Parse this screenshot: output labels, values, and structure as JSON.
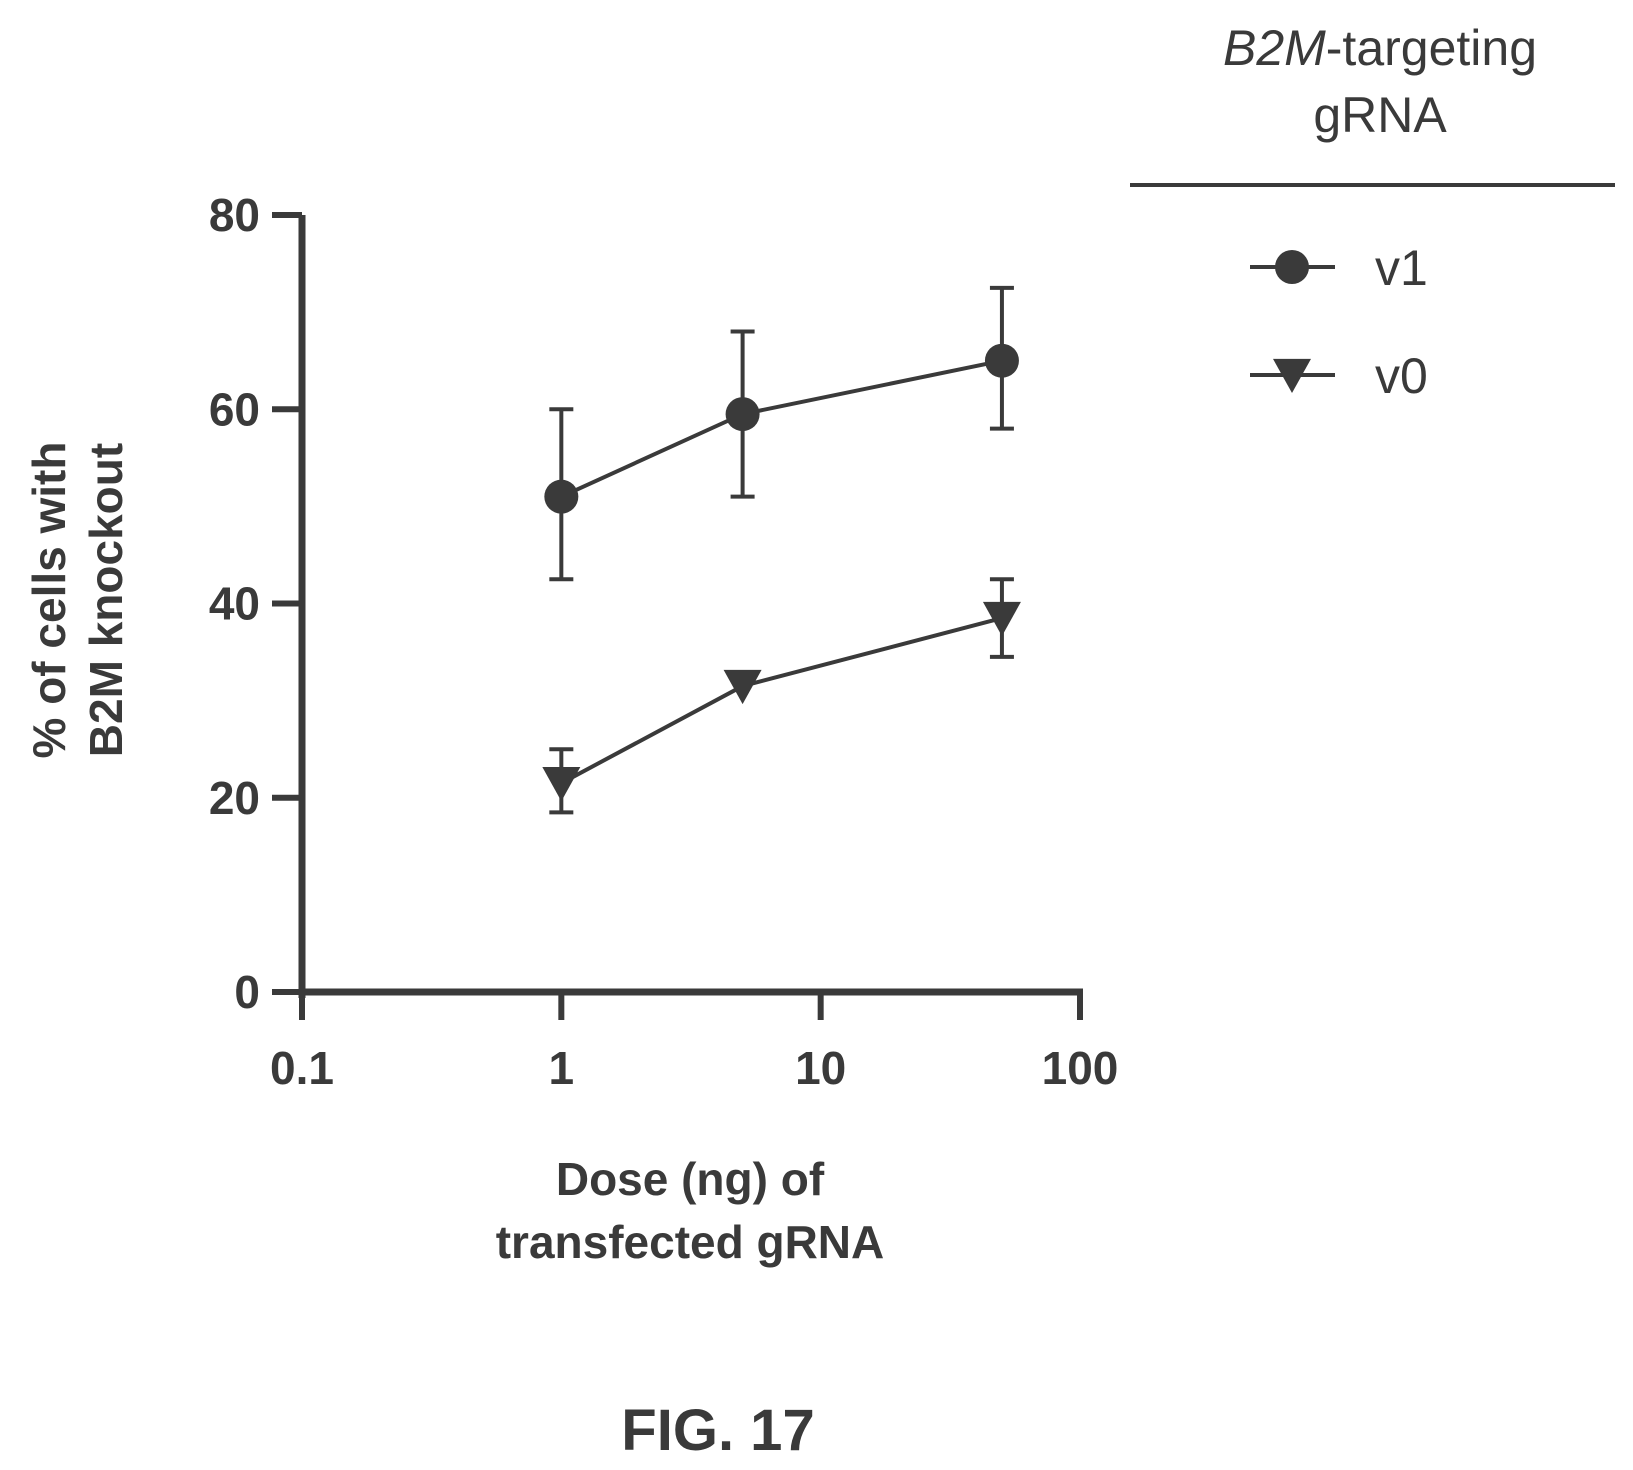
{
  "figure_caption": "FIG. 17",
  "chart_data": {
    "type": "line",
    "xscale": "log",
    "xlim": [
      0.1,
      100
    ],
    "ylim": [
      0,
      80
    ],
    "xticks": [
      0.1,
      1,
      10,
      100
    ],
    "xtick_labels": [
      "0.1",
      "1",
      "10",
      "100"
    ],
    "yticks": [
      0,
      20,
      40,
      60,
      80
    ],
    "ytick_labels": [
      "0",
      "20",
      "40",
      "60",
      "80"
    ],
    "xlabel": [
      "Dose (ng) of",
      "transfected gRNA"
    ],
    "ylabel": [
      "% of cells with",
      "B2M knockout"
    ],
    "legend": {
      "title_italic": "B2M",
      "title_rest": "-targeting",
      "title_line2": "gRNA",
      "position": "top-right"
    },
    "grid": false,
    "series": [
      {
        "name": "v1",
        "marker": "circle",
        "x": [
          1,
          5,
          50
        ],
        "y": [
          51,
          59.5,
          65
        ],
        "err_low": [
          42.5,
          51,
          58
        ],
        "err_high": [
          60,
          68,
          72.5
        ]
      },
      {
        "name": "v0",
        "marker": "triangle-down",
        "x": [
          1,
          5,
          50
        ],
        "y": [
          21.5,
          31.5,
          38.5
        ],
        "err_low": [
          18.5,
          null,
          34.5
        ],
        "err_high": [
          25,
          null,
          42.5
        ]
      }
    ],
    "colors": {
      "ink": "#3a3a3a"
    }
  }
}
